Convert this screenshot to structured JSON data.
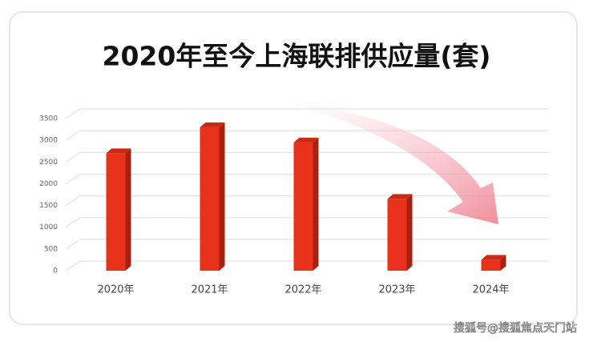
{
  "chart_data": {
    "type": "bar",
    "title": "2020年至今上海联排供应量(套)",
    "categories": [
      "2020年",
      "2021年",
      "2022年",
      "2023年",
      "2024年"
    ],
    "values": [
      2700,
      3300,
      2950,
      1650,
      250
    ],
    "color": "#e8321c",
    "ylim": [
      0,
      3500
    ],
    "yticks": [
      0,
      500,
      1000,
      1500,
      2000,
      2500,
      3000,
      3500
    ],
    "grid": true
  },
  "watermark": "搜狐号@搜狐焦点天门站"
}
